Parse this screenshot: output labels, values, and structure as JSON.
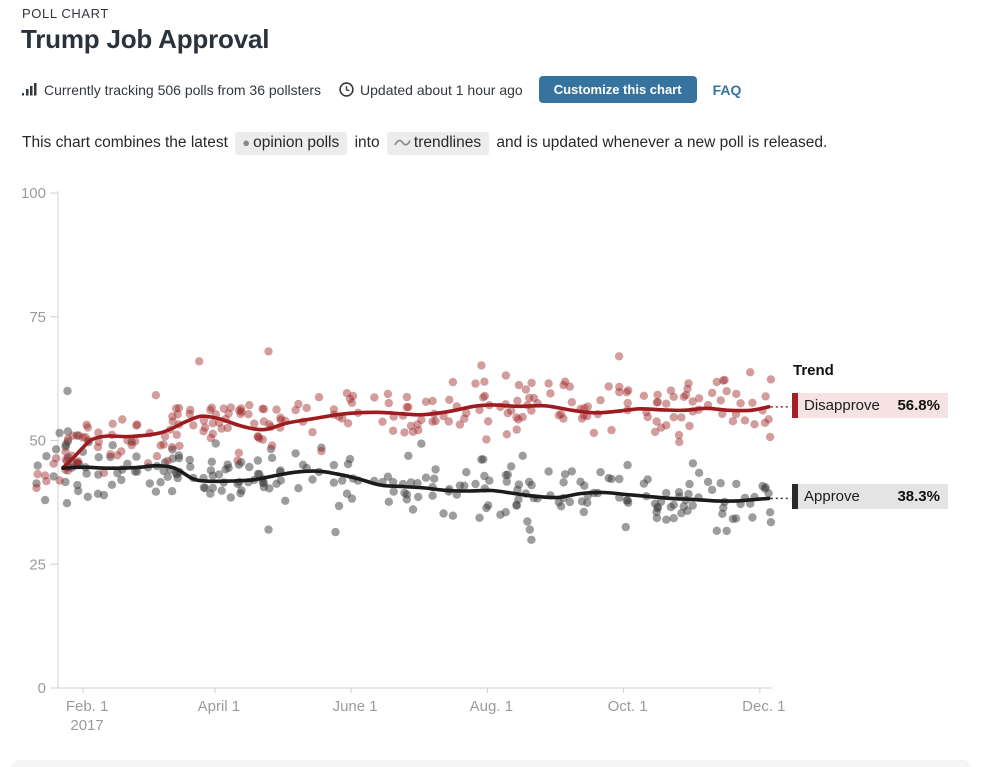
{
  "header": {
    "kicker": "POLL CHART",
    "title": "Trump Job Approval",
    "tracking_text": "Currently tracking 506 polls from 36 pollsters",
    "updated_text": "Updated about 1 hour ago",
    "customize_button": "Customize this chart",
    "faq_link": "FAQ"
  },
  "description": {
    "part1": "This chart combines the latest",
    "chip_polls": "opinion polls",
    "part2": "into",
    "chip_trendlines": "trendlines",
    "part3": "and is updated whenever a new poll is released."
  },
  "legend": {
    "title": "Trend",
    "disapprove_label": "Disapprove",
    "disapprove_value": "56.8%",
    "approve_label": "Approve",
    "approve_value": "38.3%"
  },
  "colors": {
    "accent_blue": "#36749f",
    "disapprove_line": "#9e1b1f",
    "approve_line": "#1b1b1b",
    "disapprove_dot": "#9d2626",
    "approve_dot": "#3c3c3c",
    "axis_line": "#d0d0d0",
    "axis_text": "#9b9b9b",
    "disapprove_chip_bg": "#f6e2e2",
    "approve_chip_bg": "#e4e4e4"
  },
  "chart_data": {
    "type": "scatter",
    "title": "Trump Job Approval",
    "x_axis": {
      "start_label": "Feb. 1",
      "year_label": "2017",
      "tick_labels": [
        "Feb. 1",
        "April 1",
        "June 1",
        "Aug. 1",
        "Oct. 1",
        "Dec. 1"
      ],
      "tick_days": [
        9,
        68,
        129,
        190,
        251,
        312
      ],
      "day_range": [
        -12,
        317
      ]
    },
    "y_axis": {
      "ticks": [
        0,
        25,
        50,
        75,
        100
      ],
      "range": [
        0,
        100
      ],
      "grid": false
    },
    "series": [
      {
        "name": "Disapprove",
        "current": 56.8,
        "trend": [
          [
            0,
            44.5
          ],
          [
            4,
            46.2
          ],
          [
            9,
            48.6
          ],
          [
            13,
            50.2
          ],
          [
            20,
            50.9
          ],
          [
            30,
            50.8
          ],
          [
            44,
            51.6
          ],
          [
            55,
            53.8
          ],
          [
            62,
            54.9
          ],
          [
            70,
            54.4
          ],
          [
            80,
            52.9
          ],
          [
            90,
            52.2
          ],
          [
            100,
            53.5
          ],
          [
            112,
            54.4
          ],
          [
            126,
            55.4
          ],
          [
            140,
            55.7
          ],
          [
            152,
            55.4
          ],
          [
            160,
            55.2
          ],
          [
            172,
            55.8
          ],
          [
            184,
            56.9
          ],
          [
            192,
            57.2
          ],
          [
            204,
            56.9
          ],
          [
            216,
            57.0
          ],
          [
            228,
            56.1
          ],
          [
            238,
            55.6
          ],
          [
            248,
            55.9
          ],
          [
            258,
            56.4
          ],
          [
            268,
            56.2
          ],
          [
            278,
            56.1
          ],
          [
            288,
            56.5
          ],
          [
            298,
            56.1
          ],
          [
            308,
            56.1
          ],
          [
            316,
            56.8
          ]
        ]
      },
      {
        "name": "Approve",
        "current": 38.3,
        "trend": [
          [
            0,
            44.4
          ],
          [
            9,
            44.6
          ],
          [
            20,
            44.4
          ],
          [
            32,
            44.5
          ],
          [
            42,
            44.9
          ],
          [
            50,
            44.4
          ],
          [
            58,
            42.3
          ],
          [
            64,
            41.8
          ],
          [
            74,
            41.8
          ],
          [
            84,
            42.0
          ],
          [
            94,
            42.8
          ],
          [
            104,
            43.6
          ],
          [
            114,
            43.8
          ],
          [
            122,
            43.3
          ],
          [
            132,
            42.3
          ],
          [
            142,
            41.0
          ],
          [
            152,
            40.7
          ],
          [
            162,
            40.4
          ],
          [
            172,
            39.9
          ],
          [
            182,
            39.8
          ],
          [
            192,
            39.9
          ],
          [
            202,
            39.3
          ],
          [
            212,
            38.7
          ],
          [
            222,
            38.5
          ],
          [
            232,
            39.3
          ],
          [
            242,
            39.5
          ],
          [
            252,
            39.1
          ],
          [
            262,
            38.7
          ],
          [
            272,
            38.3
          ],
          [
            282,
            38.1
          ],
          [
            292,
            37.8
          ],
          [
            302,
            37.8
          ],
          [
            310,
            38.1
          ],
          [
            316,
            38.3
          ]
        ]
      }
    ],
    "scatter": {
      "total_polls": 506,
      "pairs": 249,
      "noise_sd": 3.2,
      "seed": 11,
      "dot_radius": 4.2,
      "disapprove_opacity": 0.45,
      "approve_opacity": 0.5,
      "outliers": {
        "Disapprove": [
          [
            61,
            66
          ],
          [
            92,
            68
          ],
          [
            249,
            67
          ]
        ],
        "Approve": [
          [
            2,
            60
          ],
          [
            92,
            32
          ],
          [
            122,
            31.5
          ],
          [
            209,
            32
          ],
          [
            252,
            32.5
          ]
        ]
      }
    }
  }
}
